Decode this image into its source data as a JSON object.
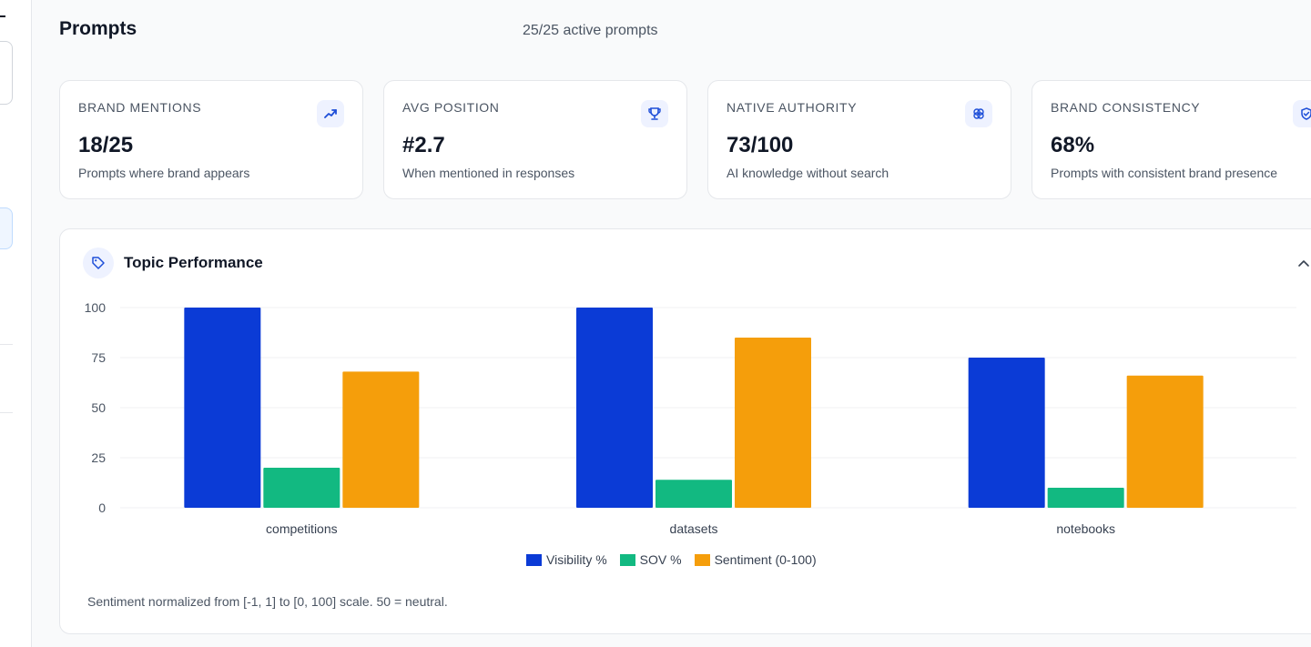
{
  "header": {
    "title": "Prompts",
    "active_prompts": "25/25 active prompts"
  },
  "stats": [
    {
      "label": "BRAND MENTIONS",
      "value": "18/25",
      "description": "Prompts where brand appears",
      "icon": "trending-up-icon"
    },
    {
      "label": "AVG POSITION",
      "value": "#2.7",
      "description": "When mentioned in responses",
      "icon": "trophy-icon"
    },
    {
      "label": "NATIVE AUTHORITY",
      "value": "73/100",
      "description": "AI knowledge without search",
      "icon": "brain-icon"
    },
    {
      "label": "BRAND CONSISTENCY",
      "value": "68%",
      "description": "Prompts with consistent brand presence",
      "icon": "shield-check-icon"
    }
  ],
  "topic_performance": {
    "title": "Topic Performance",
    "footnote": "Sentiment normalized from [-1, 1] to [0, 100] scale. 50 = neutral."
  },
  "chart_data": {
    "type": "bar",
    "categories": [
      "competitions",
      "datasets",
      "notebooks"
    ],
    "series": [
      {
        "name": "Visibility %",
        "color": "#0b3bd6",
        "values": [
          100,
          100,
          75
        ]
      },
      {
        "name": "SOV %",
        "color": "#12b981",
        "values": [
          20,
          14,
          10
        ]
      },
      {
        "name": "Sentiment (0-100)",
        "color": "#f59e0b",
        "values": [
          68,
          85,
          66
        ]
      }
    ],
    "yticks": [
      0,
      25,
      50,
      75,
      100
    ],
    "ylim": [
      0,
      100
    ],
    "grid": true,
    "legend_position": "bottom"
  }
}
